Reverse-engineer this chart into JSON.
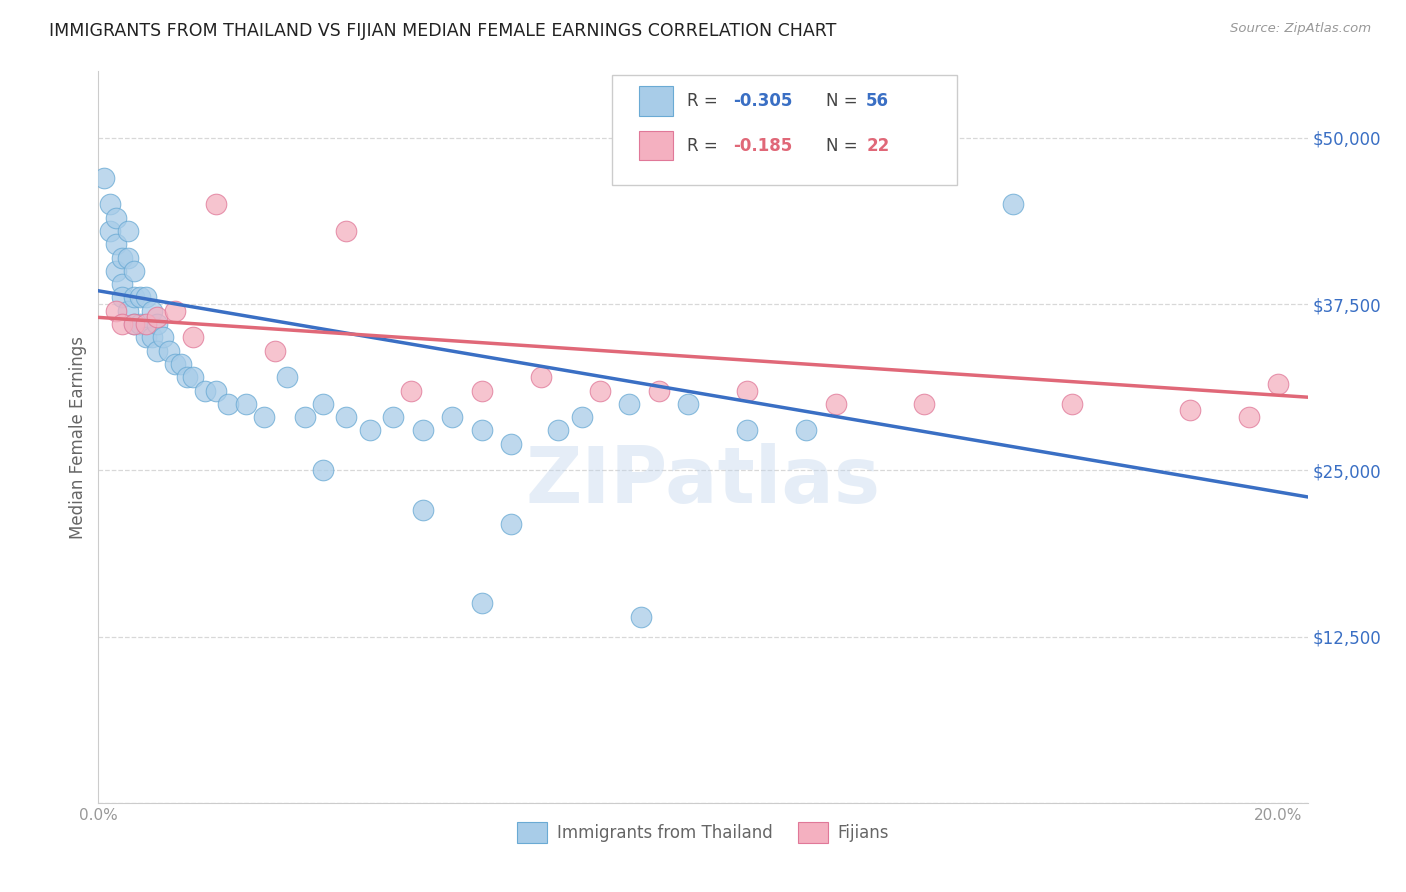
{
  "title": "IMMIGRANTS FROM THAILAND VS FIJIAN MEDIAN FEMALE EARNINGS CORRELATION CHART",
  "source": "Source: ZipAtlas.com",
  "ylabel": "Median Female Earnings",
  "xlim": [
    0.0,
    0.205
  ],
  "ylim": [
    0,
    55000
  ],
  "yticks": [
    0,
    12500,
    25000,
    37500,
    50000
  ],
  "ytick_labels": [
    "",
    "$12,500",
    "$25,000",
    "$37,500",
    "$50,000"
  ],
  "background_color": "#ffffff",
  "grid_color": "#d8d8d8",
  "blue_color": "#a8cce8",
  "pink_color": "#f4b0c0",
  "blue_edge_color": "#6aaad4",
  "pink_edge_color": "#e07898",
  "blue_line_color": "#3a6fc4",
  "pink_line_color": "#e06878",
  "watermark": "ZIPatlas",
  "thai_x": [
    0.001,
    0.002,
    0.002,
    0.003,
    0.003,
    0.003,
    0.004,
    0.004,
    0.004,
    0.005,
    0.005,
    0.005,
    0.006,
    0.006,
    0.006,
    0.007,
    0.007,
    0.008,
    0.008,
    0.009,
    0.009,
    0.01,
    0.01,
    0.011,
    0.012,
    0.013,
    0.014,
    0.015,
    0.016,
    0.018,
    0.02,
    0.022,
    0.025,
    0.028,
    0.032,
    0.035,
    0.038,
    0.042,
    0.046,
    0.05,
    0.055,
    0.06,
    0.065,
    0.07,
    0.078,
    0.082,
    0.09,
    0.1,
    0.11,
    0.12,
    0.038,
    0.055,
    0.07,
    0.065,
    0.092,
    0.155
  ],
  "thai_y": [
    47000,
    45000,
    43000,
    44000,
    42000,
    40000,
    41000,
    39000,
    38000,
    43000,
    41000,
    37000,
    40000,
    38000,
    36000,
    38000,
    36000,
    38000,
    35000,
    37000,
    35000,
    36000,
    34000,
    35000,
    34000,
    33000,
    33000,
    32000,
    32000,
    31000,
    31000,
    30000,
    30000,
    29000,
    32000,
    29000,
    30000,
    29000,
    28000,
    29000,
    28000,
    29000,
    28000,
    27000,
    28000,
    29000,
    30000,
    30000,
    28000,
    28000,
    25000,
    22000,
    21000,
    15000,
    14000,
    45000
  ],
  "fij_x": [
    0.003,
    0.004,
    0.006,
    0.008,
    0.01,
    0.013,
    0.016,
    0.02,
    0.03,
    0.042,
    0.053,
    0.065,
    0.075,
    0.085,
    0.095,
    0.11,
    0.125,
    0.14,
    0.165,
    0.185,
    0.195,
    0.2
  ],
  "fij_y": [
    37000,
    36000,
    36000,
    36000,
    36500,
    37000,
    35000,
    45000,
    34000,
    43000,
    31000,
    31000,
    32000,
    31000,
    31000,
    31000,
    30000,
    30000,
    30000,
    29500,
    29000,
    31500
  ],
  "blue_trend_x0": 0.0,
  "blue_trend_y0": 38500,
  "blue_trend_x1": 0.205,
  "blue_trend_y1": 23000,
  "pink_trend_x0": 0.0,
  "pink_trend_y0": 36500,
  "pink_trend_x1": 0.205,
  "pink_trend_y1": 30500
}
